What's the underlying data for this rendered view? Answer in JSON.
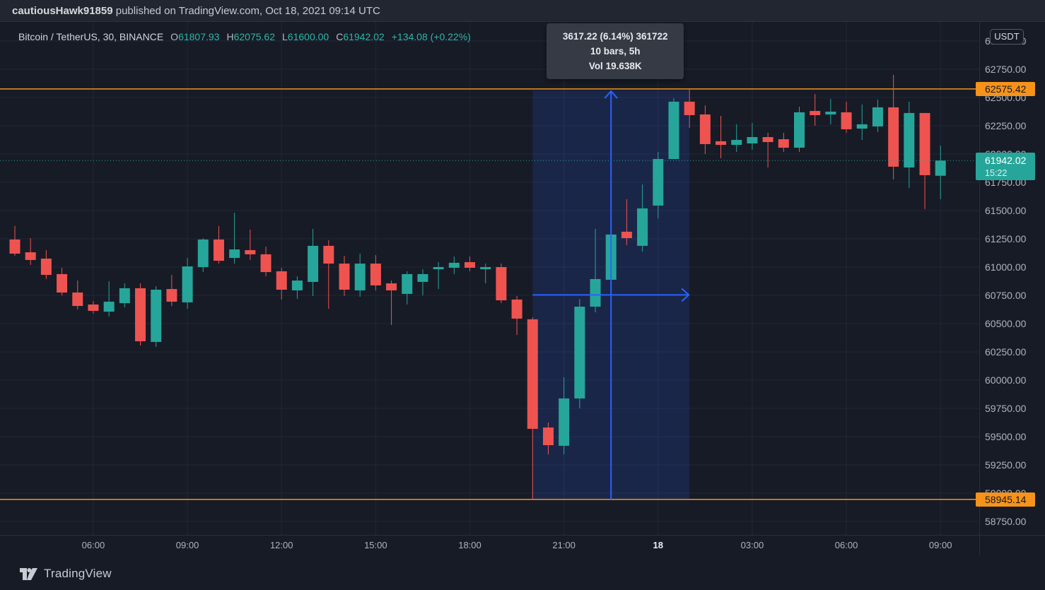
{
  "top_bar": {
    "username": "cautiousHawk91859",
    "publish_text": " published on TradingView.com, Oct 18, 2021 09:14 UTC"
  },
  "legend": {
    "title": "Bitcoin / TetherUS, 30, BINANCE",
    "open_label": "O",
    "open_value": "61807.93",
    "high_label": "H",
    "high_value": "62075.62",
    "low_label": "L",
    "low_value": "61600.00",
    "close_label": "C",
    "close_value": "61942.02",
    "change": "+134.08 (+0.22%)"
  },
  "measure": {
    "tooltip_line1": "3617.22 (6.14%) 361722",
    "tooltip_line2": "10 bars, 5h",
    "tooltip_line3": "Vol 19.638K",
    "start_bar_index": 33,
    "end_bar_index": 43,
    "top_price": 62562.36,
    "bottom_price": 58945.14
  },
  "drawings": {
    "upper_ray": {
      "price": 62575.42,
      "label": "62575.42"
    },
    "lower_ray": {
      "price": 58945.14,
      "label": "58945.14"
    }
  },
  "last_price": {
    "price": 61942.02,
    "label": "61942.02",
    "countdown": "15:22"
  },
  "price_axis": {
    "currency_label": "USDT",
    "ticks": [
      {
        "price": 63000,
        "label": "63000.00"
      },
      {
        "price": 62750,
        "label": "62750.00"
      },
      {
        "price": 62500,
        "label": "62500.00"
      },
      {
        "price": 62250,
        "label": "62250.00"
      },
      {
        "price": 62000,
        "label": "62000.00"
      },
      {
        "price": 61750,
        "label": "61750.00"
      },
      {
        "price": 61500,
        "label": "61500.00"
      },
      {
        "price": 61250,
        "label": "61250.00"
      },
      {
        "price": 61000,
        "label": "61000.00"
      },
      {
        "price": 60750,
        "label": "60750.00"
      },
      {
        "price": 60500,
        "label": "60500.00"
      },
      {
        "price": 60250,
        "label": "60250.00"
      },
      {
        "price": 60000,
        "label": "60000.00"
      },
      {
        "price": 59750,
        "label": "59750.00"
      },
      {
        "price": 59500,
        "label": "59500.00"
      },
      {
        "price": 59250,
        "label": "59250.00"
      },
      {
        "price": 59000,
        "label": "59000.00"
      },
      {
        "price": 58750,
        "label": "58750.00"
      }
    ]
  },
  "time_axis": {
    "ticks": [
      {
        "label": "06:00",
        "bar_index": 5,
        "emphasis": false
      },
      {
        "label": "09:00",
        "bar_index": 11,
        "emphasis": false
      },
      {
        "label": "12:00",
        "bar_index": 17,
        "emphasis": false
      },
      {
        "label": "15:00",
        "bar_index": 23,
        "emphasis": false
      },
      {
        "label": "18:00",
        "bar_index": 29,
        "emphasis": false
      },
      {
        "label": "21:00",
        "bar_index": 35,
        "emphasis": false
      },
      {
        "label": "18",
        "bar_index": 41,
        "emphasis": true
      },
      {
        "label": "03:00",
        "bar_index": 47,
        "emphasis": false
      },
      {
        "label": "06:00",
        "bar_index": 53,
        "emphasis": false
      },
      {
        "label": "09:00",
        "bar_index": 59,
        "emphasis": false
      }
    ]
  },
  "brand": {
    "name": "TradingView"
  },
  "colors": {
    "up": "#26a69a",
    "down": "#ef5350",
    "accent_blue": "#2962ff",
    "ray_orange": "#f7931a",
    "grid": "#222736",
    "measure_fill": "rgba(41,98,255,0.16)",
    "background": "#171b26",
    "axis_text": "#b2b5be"
  },
  "chart_data": {
    "type": "candlestick",
    "title": "Bitcoin / TetherUS, 30, BINANCE",
    "symbol": "BTC/USDT",
    "interval_minutes": 30,
    "exchange": "BINANCE",
    "ylim": [
      58750,
      63000
    ],
    "grid": true,
    "bars_ohlc": [
      [
        61244,
        61363,
        61100,
        61119
      ],
      [
        61131,
        61256,
        61019,
        61063
      ],
      [
        61075,
        61150,
        60894,
        60931
      ],
      [
        60938,
        60994,
        60750,
        60775
      ],
      [
        60775,
        60881,
        60625,
        60656
      ],
      [
        60669,
        60700,
        60588,
        60613
      ],
      [
        60606,
        60875,
        60563,
        60694
      ],
      [
        60681,
        60856,
        60644,
        60813
      ],
      [
        60813,
        60856,
        60306,
        60344
      ],
      [
        60338,
        60831,
        60294,
        60800
      ],
      [
        60806,
        60931,
        60656,
        60694
      ],
      [
        60688,
        61081,
        60631,
        61006
      ],
      [
        61000,
        61256,
        60956,
        61244
      ],
      [
        61244,
        61363,
        61031,
        61056
      ],
      [
        61081,
        61481,
        61031,
        61156
      ],
      [
        61150,
        61331,
        61063,
        61113
      ],
      [
        61113,
        61181,
        60919,
        60956
      ],
      [
        60963,
        60994,
        60713,
        60800
      ],
      [
        60794,
        60919,
        60719,
        60881
      ],
      [
        60869,
        61338,
        60744,
        61188
      ],
      [
        61188,
        61238,
        60631,
        61031
      ],
      [
        61031,
        61100,
        60744,
        60800
      ],
      [
        60794,
        61119,
        60738,
        61031
      ],
      [
        61031,
        61106,
        60794,
        60838
      ],
      [
        60856,
        60881,
        60488,
        60794
      ],
      [
        60763,
        60963,
        60669,
        60938
      ],
      [
        60869,
        60981,
        60750,
        60938
      ],
      [
        60981,
        61044,
        60806,
        61000
      ],
      [
        60994,
        61094,
        60938,
        61038
      ],
      [
        61044,
        61094,
        60963,
        60994
      ],
      [
        60981,
        61031,
        60856,
        61000
      ],
      [
        61000,
        61031,
        60681,
        60706
      ],
      [
        60713,
        60744,
        60400,
        60544
      ],
      [
        60538,
        60556,
        58945.14,
        59569
      ],
      [
        59581,
        59625,
        59344,
        59425
      ],
      [
        59419,
        60025,
        59344,
        59838
      ],
      [
        59838,
        60719,
        59750,
        60650
      ],
      [
        60650,
        61338,
        60600,
        60894
      ],
      [
        60888,
        61325,
        60794,
        61288
      ],
      [
        61313,
        61600,
        61194,
        61256
      ],
      [
        61188,
        61731,
        61138,
        61519
      ],
      [
        61544,
        62019,
        61431,
        61956
      ],
      [
        61956,
        62494,
        61956,
        62463
      ],
      [
        62463,
        62575,
        62231,
        62344
      ],
      [
        62350,
        62431,
        62000,
        62088
      ],
      [
        62113,
        62338,
        61963,
        62081
      ],
      [
        62081,
        62263,
        62019,
        62125
      ],
      [
        62094,
        62275,
        62038,
        62150
      ],
      [
        62150,
        62188,
        61881,
        62106
      ],
      [
        62131,
        62188,
        62019,
        62056
      ],
      [
        62056,
        62419,
        62019,
        62369
      ],
      [
        62381,
        62531,
        62250,
        62344
      ],
      [
        62350,
        62488,
        62263,
        62375
      ],
      [
        62369,
        62463,
        62188,
        62219
      ],
      [
        62225,
        62438,
        62125,
        62263
      ],
      [
        62244,
        62481,
        62194,
        62413
      ],
      [
        62413,
        62700,
        61775,
        61888
      ],
      [
        61881,
        62463,
        61700,
        62363
      ],
      [
        62363,
        62363,
        61513,
        61813
      ],
      [
        61807.93,
        62075.62,
        61600.0,
        61942.02
      ]
    ]
  }
}
